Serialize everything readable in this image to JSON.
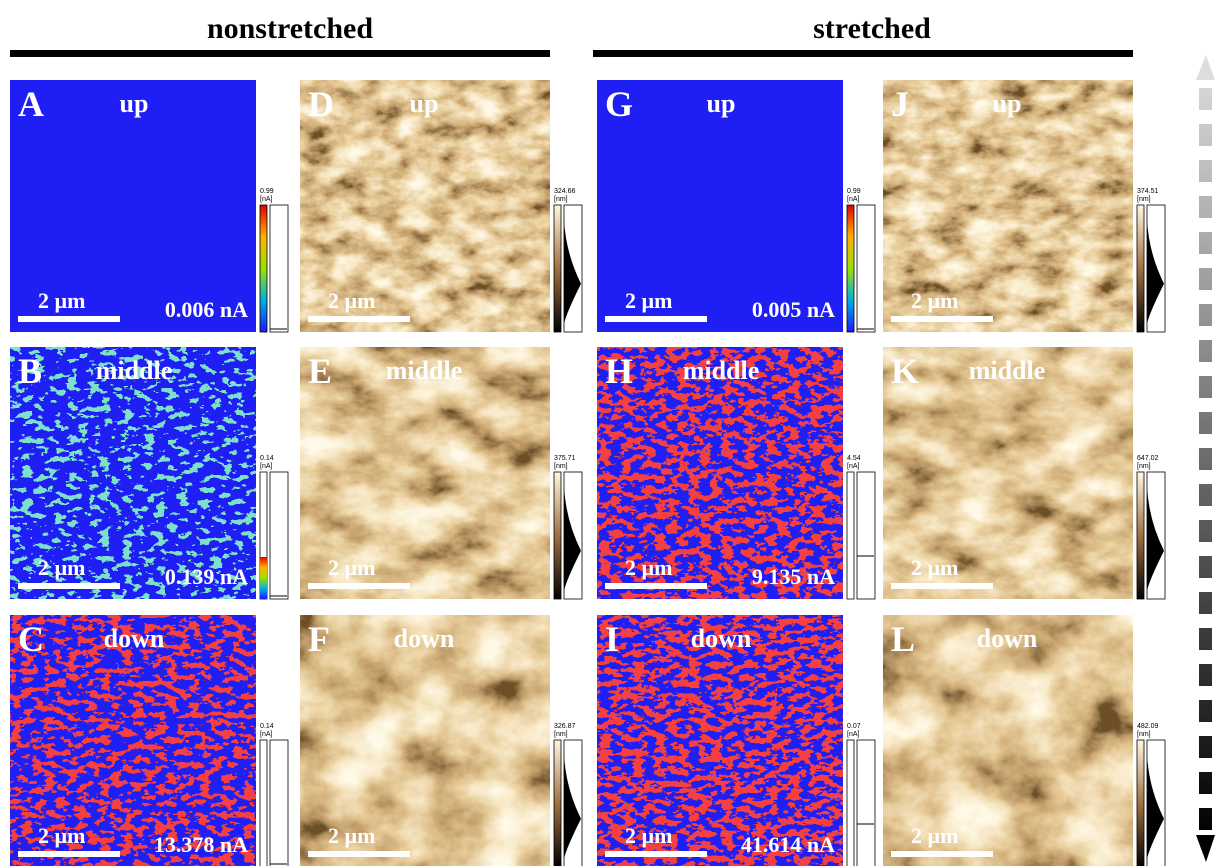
{
  "headers": [
    "nonstretched",
    "stretched"
  ],
  "panels": [
    {
      "letter": "A",
      "position": "up",
      "scale": "2 µm",
      "current": "0.006 nA",
      "colorbar_max": "0.99",
      "colorbar_unit": "[nA]"
    },
    {
      "letter": "B",
      "position": "middle",
      "scale": "2 µm",
      "current": "0.139 nA",
      "colorbar_max": "0.14",
      "colorbar_unit": "[nA]"
    },
    {
      "letter": "C",
      "position": "down",
      "scale": "2 µm",
      "current": "13.378 nA",
      "colorbar_max": "0.14",
      "colorbar_unit": "[nA]"
    },
    {
      "letter": "D",
      "position": "up",
      "scale": "2 µm",
      "colorbar_max": "324.66",
      "colorbar_unit": "[nm]"
    },
    {
      "letter": "E",
      "position": "middle",
      "scale": "2 µm",
      "colorbar_max": "375.71",
      "colorbar_unit": "[nm]"
    },
    {
      "letter": "F",
      "position": "down",
      "scale": "2 µm",
      "colorbar_max": "326.87",
      "colorbar_unit": "[nm]"
    },
    {
      "letter": "G",
      "position": "up",
      "scale": "2 µm",
      "current": "0.005 nA",
      "colorbar_max": "0.99",
      "colorbar_unit": "[nA]"
    },
    {
      "letter": "H",
      "position": "middle",
      "scale": "2 µm",
      "current": "9.135 nA",
      "colorbar_max": "4.54",
      "colorbar_unit": "[nA]"
    },
    {
      "letter": "I",
      "position": "down",
      "scale": "2 µm",
      "current": "41.614 nA",
      "colorbar_max": "0.07",
      "colorbar_unit": "[nA]"
    },
    {
      "letter": "J",
      "position": "up",
      "scale": "2 µm",
      "colorbar_max": "374.51",
      "colorbar_unit": "[nm]"
    },
    {
      "letter": "K",
      "position": "middle",
      "scale": "2 µm",
      "colorbar_max": "647.02",
      "colorbar_unit": "[nm]"
    },
    {
      "letter": "L",
      "position": "down",
      "scale": "2 µm",
      "colorbar_max": "482.09",
      "colorbar_unit": "[nm]"
    }
  ]
}
